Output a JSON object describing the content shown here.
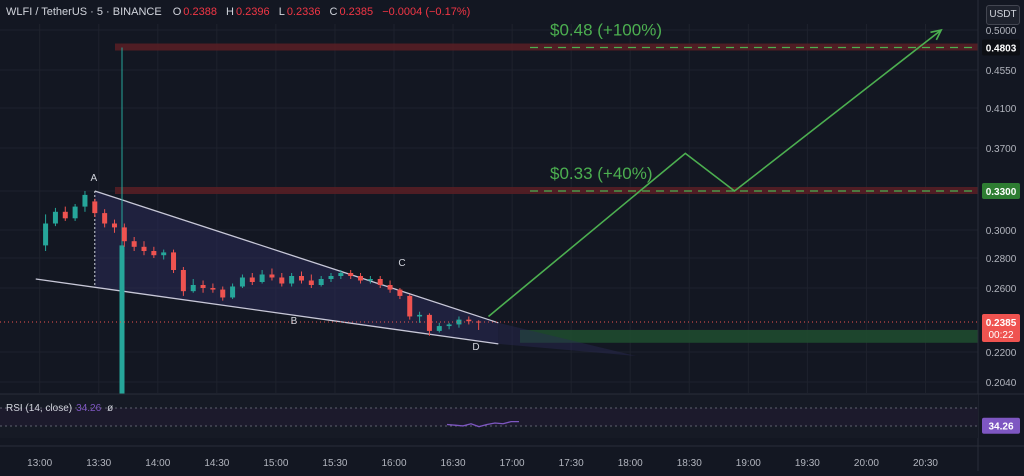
{
  "header": {
    "symbol": "WLFI / TetherUS · 5 · BINANCE",
    "o_label": "O",
    "o_value": "0.2388",
    "h_label": "H",
    "h_value": "0.2396",
    "l_label": "L",
    "l_value": "0.2336",
    "c_label": "C",
    "c_value": "0.2385",
    "change": "−0.0004 (−0.17%)"
  },
  "currency_badge": "USDT",
  "colors": {
    "background": "#131722",
    "up": "#26a69a",
    "down": "#ef5350",
    "target_text": "#4caf50",
    "resistance_band": "#5a1e24",
    "support_band": "#1f4a2f",
    "wedge_fill": "#2a2a55",
    "rsi_line": "#7e57c2"
  },
  "chart_data": {
    "type": "candlestick",
    "x_ticks": [
      "13:00",
      "13:30",
      "14:00",
      "14:30",
      "15:00",
      "15:30",
      "16:00",
      "16:30",
      "17:00",
      "17:30",
      "18:00",
      "18:30",
      "19:00",
      "19:30",
      "20:00",
      "20:30"
    ],
    "y_ticks": [
      "0.5000",
      "0.4550",
      "0.4100",
      "0.3700",
      "0.3300",
      "0.3000",
      "0.2800",
      "0.2600",
      "0.2200",
      "0.2040"
    ],
    "ylim": [
      0.196,
      0.535
    ],
    "candles": [
      {
        "t": "12:58",
        "o": 0.196,
        "h": 0.295,
        "l": 0.196,
        "c": 0.289
      },
      {
        "t": "13:03",
        "o": 0.289,
        "h": 0.312,
        "l": 0.285,
        "c": 0.305
      },
      {
        "t": "13:08",
        "o": 0.305,
        "h": 0.317,
        "l": 0.303,
        "c": 0.314
      },
      {
        "t": "13:13",
        "o": 0.314,
        "h": 0.318,
        "l": 0.307,
        "c": 0.309
      },
      {
        "t": "13:18",
        "o": 0.309,
        "h": 0.32,
        "l": 0.307,
        "c": 0.318
      },
      {
        "t": "13:23",
        "o": 0.318,
        "h": 0.33,
        "l": 0.314,
        "c": 0.327
      },
      {
        "t": "13:28",
        "o": 0.322,
        "h": 0.324,
        "l": 0.31,
        "c": 0.313
      },
      {
        "t": "13:33",
        "o": 0.313,
        "h": 0.316,
        "l": 0.302,
        "c": 0.305
      },
      {
        "t": "13:38",
        "o": 0.305,
        "h": 0.308,
        "l": 0.298,
        "c": 0.302
      },
      {
        "t": "13:43",
        "o": 0.302,
        "h": 0.305,
        "l": 0.288,
        "c": 0.292
      },
      {
        "t": "13:48",
        "o": 0.292,
        "h": 0.295,
        "l": 0.285,
        "c": 0.288
      },
      {
        "t": "13:53",
        "o": 0.288,
        "h": 0.292,
        "l": 0.282,
        "c": 0.285
      },
      {
        "t": "13:58",
        "o": 0.285,
        "h": 0.288,
        "l": 0.28,
        "c": 0.282
      },
      {
        "t": "14:03",
        "o": 0.282,
        "h": 0.286,
        "l": 0.279,
        "c": 0.284
      },
      {
        "t": "14:08",
        "o": 0.284,
        "h": 0.286,
        "l": 0.27,
        "c": 0.272
      },
      {
        "t": "14:13",
        "o": 0.272,
        "h": 0.274,
        "l": 0.255,
        "c": 0.258
      },
      {
        "t": "14:18",
        "o": 0.258,
        "h": 0.266,
        "l": 0.257,
        "c": 0.262
      },
      {
        "t": "14:23",
        "o": 0.262,
        "h": 0.265,
        "l": 0.257,
        "c": 0.26
      },
      {
        "t": "14:28",
        "o": 0.26,
        "h": 0.263,
        "l": 0.257,
        "c": 0.259
      },
      {
        "t": "14:33",
        "o": 0.259,
        "h": 0.261,
        "l": 0.252,
        "c": 0.254
      },
      {
        "t": "14:38",
        "o": 0.254,
        "h": 0.263,
        "l": 0.253,
        "c": 0.261
      },
      {
        "t": "14:43",
        "o": 0.261,
        "h": 0.269,
        "l": 0.26,
        "c": 0.267
      },
      {
        "t": "14:48",
        "o": 0.267,
        "h": 0.27,
        "l": 0.262,
        "c": 0.264
      },
      {
        "t": "14:53",
        "o": 0.264,
        "h": 0.272,
        "l": 0.263,
        "c": 0.269
      },
      {
        "t": "14:58",
        "o": 0.269,
        "h": 0.273,
        "l": 0.265,
        "c": 0.267
      },
      {
        "t": "15:03",
        "o": 0.267,
        "h": 0.27,
        "l": 0.261,
        "c": 0.263
      },
      {
        "t": "15:08",
        "o": 0.263,
        "h": 0.27,
        "l": 0.261,
        "c": 0.268
      },
      {
        "t": "15:13",
        "o": 0.268,
        "h": 0.271,
        "l": 0.263,
        "c": 0.265
      },
      {
        "t": "15:18",
        "o": 0.265,
        "h": 0.269,
        "l": 0.26,
        "c": 0.262
      },
      {
        "t": "15:23",
        "o": 0.262,
        "h": 0.268,
        "l": 0.261,
        "c": 0.266
      },
      {
        "t": "15:28",
        "o": 0.266,
        "h": 0.27,
        "l": 0.264,
        "c": 0.268
      },
      {
        "t": "15:33",
        "o": 0.268,
        "h": 0.272,
        "l": 0.266,
        "c": 0.27
      },
      {
        "t": "15:38",
        "o": 0.27,
        "h": 0.272,
        "l": 0.266,
        "c": 0.268
      },
      {
        "t": "15:43",
        "o": 0.268,
        "h": 0.27,
        "l": 0.263,
        "c": 0.265
      },
      {
        "t": "15:48",
        "o": 0.265,
        "h": 0.268,
        "l": 0.263,
        "c": 0.266
      },
      {
        "t": "15:53",
        "o": 0.266,
        "h": 0.268,
        "l": 0.26,
        "c": 0.262
      },
      {
        "t": "15:58",
        "o": 0.262,
        "h": 0.265,
        "l": 0.257,
        "c": 0.259
      },
      {
        "t": "16:03",
        "o": 0.259,
        "h": 0.26,
        "l": 0.253,
        "c": 0.255
      },
      {
        "t": "16:08",
        "o": 0.255,
        "h": 0.256,
        "l": 0.24,
        "c": 0.242
      },
      {
        "t": "16:13",
        "o": 0.242,
        "h": 0.245,
        "l": 0.238,
        "c": 0.243
      },
      {
        "t": "16:18",
        "o": 0.243,
        "h": 0.244,
        "l": 0.23,
        "c": 0.233
      },
      {
        "t": "16:23",
        "o": 0.233,
        "h": 0.238,
        "l": 0.232,
        "c": 0.236
      },
      {
        "t": "16:28",
        "o": 0.236,
        "h": 0.238,
        "l": 0.234,
        "c": 0.237
      },
      {
        "t": "16:33",
        "o": 0.237,
        "h": 0.242,
        "l": 0.235,
        "c": 0.24
      },
      {
        "t": "16:38",
        "o": 0.24,
        "h": 0.242,
        "l": 0.237,
        "c": 0.239
      },
      {
        "t": "16:43",
        "o": 0.2388,
        "h": 0.2396,
        "l": 0.2336,
        "c": 0.2385
      }
    ],
    "current_price": "0.2385",
    "countdown": "00:22",
    "resistance_levels": [
      {
        "price": 0.4803,
        "label": "0.4803"
      },
      {
        "price": 0.33,
        "label": "0.3300"
      }
    ],
    "support_zone": {
      "from": 0.23,
      "to": 0.233
    },
    "targets": [
      {
        "label": "$0.48 (+100%)",
        "price": 0.4803
      },
      {
        "label": "$0.33 (+40%)",
        "price": 0.33
      }
    ],
    "wedge": {
      "upper": [
        [
          "13:28",
          0.33
        ],
        [
          "16:53",
          0.238
        ]
      ],
      "lower": [
        [
          "12:58",
          0.266
        ],
        [
          "16:53",
          0.225
        ]
      ],
      "points": [
        "A",
        "B",
        "C",
        "D"
      ]
    },
    "projection": [
      [
        "16:48",
        0.242
      ],
      [
        "18:28",
        0.365
      ],
      [
        "18:53",
        0.33
      ],
      [
        "20:38",
        0.5
      ]
    ],
    "rsi": {
      "label": "RSI (14, close)",
      "value": "34.26",
      "zero_mark": "ø",
      "values": [
        36,
        35,
        34,
        37,
        33,
        36,
        38,
        37,
        40,
        40
      ]
    }
  }
}
